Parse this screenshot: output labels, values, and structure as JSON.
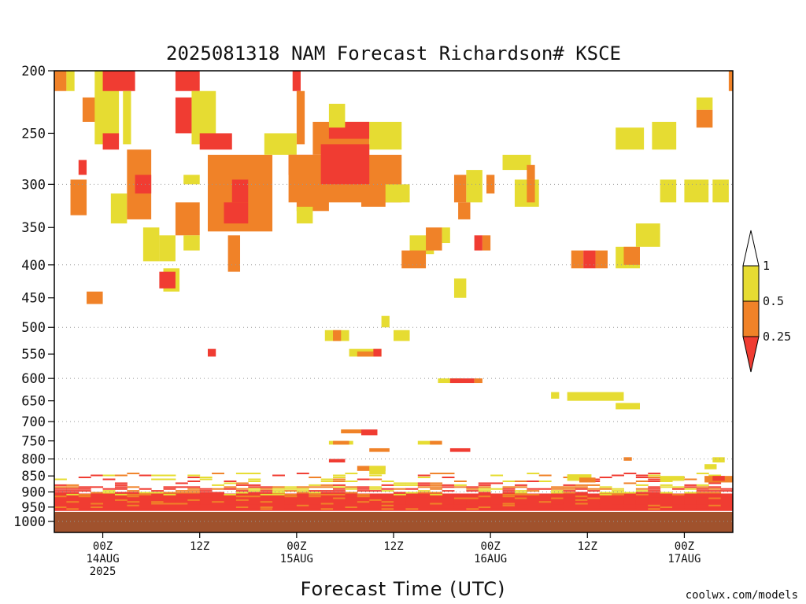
{
  "chart_data": {
    "type": "heatmap",
    "title": "2025081318 NAM Forecast Richardson# KSCE",
    "xlabel": "Forecast Time (UTC)",
    "credit": "coolwx.com/models",
    "y_axis": {
      "scale": "pressure (log)",
      "inverted": true,
      "range": [
        200,
        1040
      ],
      "ticks": [
        200,
        250,
        300,
        350,
        400,
        450,
        500,
        550,
        600,
        650,
        700,
        750,
        800,
        850,
        900,
        950,
        1000
      ],
      "gridlines": [
        300,
        400,
        500,
        600,
        700,
        800,
        900,
        1000
      ]
    },
    "x_axis": {
      "range_hours": [
        -6,
        78
      ],
      "ticks": [
        {
          "hour": 0,
          "lines": [
            "00Z",
            "14AUG",
            "2025"
          ]
        },
        {
          "hour": 12,
          "lines": [
            "12Z"
          ]
        },
        {
          "hour": 24,
          "lines": [
            "00Z",
            "15AUG"
          ]
        },
        {
          "hour": 36,
          "lines": [
            "12Z"
          ]
        },
        {
          "hour": 48,
          "lines": [
            "00Z",
            "16AUG"
          ]
        },
        {
          "hour": 60,
          "lines": [
            "12Z"
          ]
        },
        {
          "hour": 72,
          "lines": [
            "00Z",
            "17AUG"
          ]
        }
      ]
    },
    "legend": {
      "placement": "right",
      "levels": [
        {
          "label": "1",
          "color": "#ffffff"
        },
        {
          "label": "0.5",
          "color": "#e6dc32"
        },
        {
          "label": "0.25",
          "color": "#f08228"
        },
        {
          "label": "",
          "color": "#f03c32"
        }
      ]
    },
    "colors": {
      "lt_0.25": "#f03c32",
      "0.25_to_0.5": "#f08228",
      "0.5_to_1": "#e6dc32",
      "ground": "#a0522d"
    },
    "ground_below_hpa": 965,
    "boundary_layer": {
      "from_hpa": 840,
      "to_hpa": 960,
      "dominant": "lt_0.25"
    },
    "cells": [
      {
        "t0": -6,
        "t1": -4.5,
        "p0": 200,
        "p1": 215,
        "cat": "mid"
      },
      {
        "t0": -4.5,
        "t1": -3.5,
        "p0": 200,
        "p1": 215,
        "cat": "low"
      },
      {
        "t0": -2.5,
        "t1": 1,
        "p0": 220,
        "p1": 240,
        "cat": "mid"
      },
      {
        "t0": -1,
        "t1": 2,
        "p0": 200,
        "p1": 260,
        "cat": "low"
      },
      {
        "t0": 0,
        "t1": 4,
        "p0": 200,
        "p1": 215,
        "cat": "high"
      },
      {
        "t0": 0,
        "t1": 2,
        "p0": 250,
        "p1": 265,
        "cat": "high"
      },
      {
        "t0": 2.5,
        "t1": 3.5,
        "p0": 215,
        "p1": 260,
        "cat": "low"
      },
      {
        "t0": -3,
        "t1": -2,
        "p0": 275,
        "p1": 290,
        "cat": "high"
      },
      {
        "t0": -4,
        "t1": -2,
        "p0": 295,
        "p1": 335,
        "cat": "mid"
      },
      {
        "t0": 1,
        "t1": 3,
        "p0": 310,
        "p1": 345,
        "cat": "low"
      },
      {
        "t0": 3,
        "t1": 6,
        "p0": 265,
        "p1": 340,
        "cat": "mid"
      },
      {
        "t0": 4,
        "t1": 6,
        "p0": 290,
        "p1": 310,
        "cat": "high"
      },
      {
        "t0": 5,
        "t1": 7,
        "p0": 350,
        "p1": 395,
        "cat": "low"
      },
      {
        "t0": 7,
        "t1": 9,
        "p0": 360,
        "p1": 395,
        "cat": "low"
      },
      {
        "t0": 7.5,
        "t1": 9.5,
        "p0": 405,
        "p1": 440,
        "cat": "low"
      },
      {
        "t0": 7,
        "t1": 9,
        "p0": 410,
        "p1": 435,
        "cat": "high"
      },
      {
        "t0": -2,
        "t1": 0,
        "p0": 440,
        "p1": 460,
        "cat": "mid"
      },
      {
        "t0": 9,
        "t1": 12,
        "p0": 200,
        "p1": 215,
        "cat": "high"
      },
      {
        "t0": 9,
        "t1": 11,
        "p0": 220,
        "p1": 250,
        "cat": "high"
      },
      {
        "t0": 11,
        "t1": 14,
        "p0": 215,
        "p1": 260,
        "cat": "low"
      },
      {
        "t0": 12,
        "t1": 16,
        "p0": 250,
        "p1": 265,
        "cat": "high"
      },
      {
        "t0": 10,
        "t1": 12,
        "p0": 290,
        "p1": 300,
        "cat": "low"
      },
      {
        "t0": 13,
        "t1": 21,
        "p0": 270,
        "p1": 355,
        "cat": "mid"
      },
      {
        "t0": 16,
        "t1": 18,
        "p0": 295,
        "p1": 320,
        "cat": "high"
      },
      {
        "t0": 15,
        "t1": 18,
        "p0": 320,
        "p1": 345,
        "cat": "high"
      },
      {
        "t0": 9,
        "t1": 12,
        "p0": 320,
        "p1": 360,
        "cat": "mid"
      },
      {
        "t0": 10,
        "t1": 12,
        "p0": 360,
        "p1": 380,
        "cat": "low"
      },
      {
        "t0": 15.5,
        "t1": 17,
        "p0": 360,
        "p1": 410,
        "cat": "mid"
      },
      {
        "t0": 23.5,
        "t1": 24.5,
        "p0": 200,
        "p1": 215,
        "cat": "high"
      },
      {
        "t0": 24,
        "t1": 25,
        "p0": 215,
        "p1": 260,
        "cat": "mid"
      },
      {
        "t0": 20,
        "t1": 24,
        "p0": 250,
        "p1": 270,
        "cat": "low"
      },
      {
        "t0": 23,
        "t1": 26,
        "p0": 270,
        "p1": 290,
        "cat": "high"
      },
      {
        "t0": 23,
        "t1": 37,
        "p0": 270,
        "p1": 320,
        "cat": "mid"
      },
      {
        "t0": 26,
        "t1": 33,
        "p0": 240,
        "p1": 270,
        "cat": "mid"
      },
      {
        "t0": 28,
        "t1": 33,
        "p0": 240,
        "p1": 255,
        "cat": "high"
      },
      {
        "t0": 33,
        "t1": 37,
        "p0": 240,
        "p1": 265,
        "cat": "low"
      },
      {
        "t0": 27,
        "t1": 33,
        "p0": 260,
        "p1": 300,
        "cat": "high"
      },
      {
        "t0": 24,
        "t1": 28,
        "p0": 300,
        "p1": 330,
        "cat": "mid"
      },
      {
        "t0": 32,
        "t1": 35,
        "p0": 300,
        "p1": 325,
        "cat": "mid"
      },
      {
        "t0": 35,
        "t1": 38,
        "p0": 300,
        "p1": 320,
        "cat": "low"
      },
      {
        "t0": 28,
        "t1": 30,
        "p0": 225,
        "p1": 245,
        "cat": "low"
      },
      {
        "t0": 24,
        "t1": 26,
        "p0": 325,
        "p1": 345,
        "cat": "low"
      },
      {
        "t0": 38,
        "t1": 41,
        "p0": 360,
        "p1": 385,
        "cat": "low"
      },
      {
        "t0": 37,
        "t1": 40,
        "p0": 380,
        "p1": 405,
        "cat": "mid"
      },
      {
        "t0": 40,
        "t1": 42,
        "p0": 350,
        "p1": 380,
        "cat": "mid"
      },
      {
        "t0": 42,
        "t1": 43,
        "p0": 350,
        "p1": 370,
        "cat": "low"
      },
      {
        "t0": 43.5,
        "t1": 45,
        "p0": 290,
        "p1": 320,
        "cat": "mid"
      },
      {
        "t0": 45,
        "t1": 47,
        "p0": 285,
        "p1": 320,
        "cat": "low"
      },
      {
        "t0": 44,
        "t1": 45.5,
        "p0": 320,
        "p1": 340,
        "cat": "mid"
      },
      {
        "t0": 47.5,
        "t1": 48.5,
        "p0": 290,
        "p1": 310,
        "cat": "mid"
      },
      {
        "t0": 49.5,
        "t1": 53,
        "p0": 270,
        "p1": 285,
        "cat": "low"
      },
      {
        "t0": 52.5,
        "t1": 53.5,
        "p0": 280,
        "p1": 300,
        "cat": "mid"
      },
      {
        "t0": 51,
        "t1": 54,
        "p0": 295,
        "p1": 325,
        "cat": "low"
      },
      {
        "t0": 52.5,
        "t1": 53.5,
        "p0": 295,
        "p1": 320,
        "cat": "mid"
      },
      {
        "t0": 46,
        "t1": 47,
        "p0": 360,
        "p1": 380,
        "cat": "high"
      },
      {
        "t0": 47,
        "t1": 48,
        "p0": 360,
        "p1": 380,
        "cat": "mid"
      },
      {
        "t0": 43.5,
        "t1": 45,
        "p0": 420,
        "p1": 450,
        "cat": "low"
      },
      {
        "t0": 58,
        "t1": 59.5,
        "p0": 380,
        "p1": 405,
        "cat": "mid"
      },
      {
        "t0": 59.5,
        "t1": 61,
        "p0": 380,
        "p1": 405,
        "cat": "high"
      },
      {
        "t0": 61,
        "t1": 62.5,
        "p0": 380,
        "p1": 405,
        "cat": "mid"
      },
      {
        "t0": 63.5,
        "t1": 66.5,
        "p0": 375,
        "p1": 405,
        "cat": "low"
      },
      {
        "t0": 64.5,
        "t1": 66.5,
        "p0": 375,
        "p1": 400,
        "cat": "mid"
      },
      {
        "t0": 66,
        "t1": 69,
        "p0": 345,
        "p1": 375,
        "cat": "low"
      },
      {
        "t0": 63.5,
        "t1": 67,
        "p0": 245,
        "p1": 265,
        "cat": "low"
      },
      {
        "t0": 68,
        "t1": 71,
        "p0": 240,
        "p1": 265,
        "cat": "low"
      },
      {
        "t0": 69,
        "t1": 71,
        "p0": 295,
        "p1": 320,
        "cat": "low"
      },
      {
        "t0": 72,
        "t1": 75,
        "p0": 295,
        "p1": 320,
        "cat": "low"
      },
      {
        "t0": 75.5,
        "t1": 77.5,
        "p0": 295,
        "p1": 320,
        "cat": "low"
      },
      {
        "t0": 73.5,
        "t1": 75.5,
        "p0": 220,
        "p1": 230,
        "cat": "low"
      },
      {
        "t0": 73.5,
        "t1": 75.5,
        "p0": 230,
        "p1": 245,
        "cat": "mid"
      },
      {
        "t0": 77.5,
        "t1": 78,
        "p0": 200,
        "p1": 215,
        "cat": "mid"
      },
      {
        "t0": 34.5,
        "t1": 35.5,
        "p0": 480,
        "p1": 500,
        "cat": "low"
      },
      {
        "t0": 27.5,
        "t1": 30.5,
        "p0": 505,
        "p1": 525,
        "cat": "low"
      },
      {
        "t0": 28.5,
        "t1": 29.5,
        "p0": 505,
        "p1": 525,
        "cat": "mid"
      },
      {
        "t0": 36,
        "t1": 38,
        "p0": 505,
        "p1": 525,
        "cat": "low"
      },
      {
        "t0": 13,
        "t1": 14,
        "p0": 540,
        "p1": 555,
        "cat": "high"
      },
      {
        "t0": 30.5,
        "t1": 34.5,
        "p0": 540,
        "p1": 555,
        "cat": "low"
      },
      {
        "t0": 31.5,
        "t1": 33.5,
        "p0": 545,
        "p1": 555,
        "cat": "mid"
      },
      {
        "t0": 33.5,
        "t1": 34.5,
        "p0": 540,
        "p1": 555,
        "cat": "high"
      },
      {
        "t0": 41.5,
        "t1": 44.5,
        "p0": 600,
        "p1": 610,
        "cat": "low"
      },
      {
        "t0": 43,
        "t1": 46,
        "p0": 600,
        "p1": 610,
        "cat": "high"
      },
      {
        "t0": 46,
        "t1": 47,
        "p0": 600,
        "p1": 610,
        "cat": "mid"
      },
      {
        "t0": 55.5,
        "t1": 56.5,
        "p0": 630,
        "p1": 645,
        "cat": "low"
      },
      {
        "t0": 57.5,
        "t1": 64.5,
        "p0": 630,
        "p1": 650,
        "cat": "low"
      },
      {
        "t0": 63.5,
        "t1": 66.5,
        "p0": 655,
        "p1": 670,
        "cat": "low"
      },
      {
        "t0": 28,
        "t1": 31,
        "p0": 750,
        "p1": 760,
        "cat": "low"
      },
      {
        "t0": 28.5,
        "t1": 30.5,
        "p0": 750,
        "p1": 760,
        "cat": "mid"
      },
      {
        "t0": 29.5,
        "t1": 32,
        "p0": 720,
        "p1": 730,
        "cat": "low"
      },
      {
        "t0": 29.5,
        "t1": 32,
        "p0": 720,
        "p1": 730,
        "cat": "mid"
      },
      {
        "t0": 32,
        "t1": 34,
        "p0": 720,
        "p1": 735,
        "cat": "high"
      },
      {
        "t0": 33,
        "t1": 35.5,
        "p0": 770,
        "p1": 780,
        "cat": "mid"
      },
      {
        "t0": 39,
        "t1": 42,
        "p0": 750,
        "p1": 760,
        "cat": "low"
      },
      {
        "t0": 40.5,
        "t1": 42,
        "p0": 750,
        "p1": 760,
        "cat": "mid"
      },
      {
        "t0": 43,
        "t1": 45.5,
        "p0": 770,
        "p1": 780,
        "cat": "high"
      },
      {
        "t0": 31.5,
        "t1": 35,
        "p0": 820,
        "p1": 835,
        "cat": "mid"
      },
      {
        "t0": 33,
        "t1": 35,
        "p0": 820,
        "p1": 845,
        "cat": "low"
      },
      {
        "t0": 28,
        "t1": 30,
        "p0": 800,
        "p1": 810,
        "cat": "high"
      },
      {
        "t0": 64.5,
        "t1": 65.5,
        "p0": 795,
        "p1": 805,
        "cat": "mid"
      },
      {
        "t0": 75.5,
        "t1": 77,
        "p0": 795,
        "p1": 810,
        "cat": "low"
      },
      {
        "t0": 74.5,
        "t1": 76,
        "p0": 815,
        "p1": 830,
        "cat": "low"
      },
      {
        "t0": 69,
        "t1": 72,
        "p0": 850,
        "p1": 865,
        "cat": "low"
      },
      {
        "t0": 57.5,
        "t1": 60.5,
        "p0": 845,
        "p1": 865,
        "cat": "low"
      },
      {
        "t0": 59,
        "t1": 61,
        "p0": 855,
        "p1": 870,
        "cat": "mid"
      },
      {
        "t0": 74.5,
        "t1": 78,
        "p0": 850,
        "p1": 870,
        "cat": "mid"
      },
      {
        "t0": 75.5,
        "t1": 77,
        "p0": 850,
        "p1": 865,
        "cat": "high"
      }
    ]
  }
}
